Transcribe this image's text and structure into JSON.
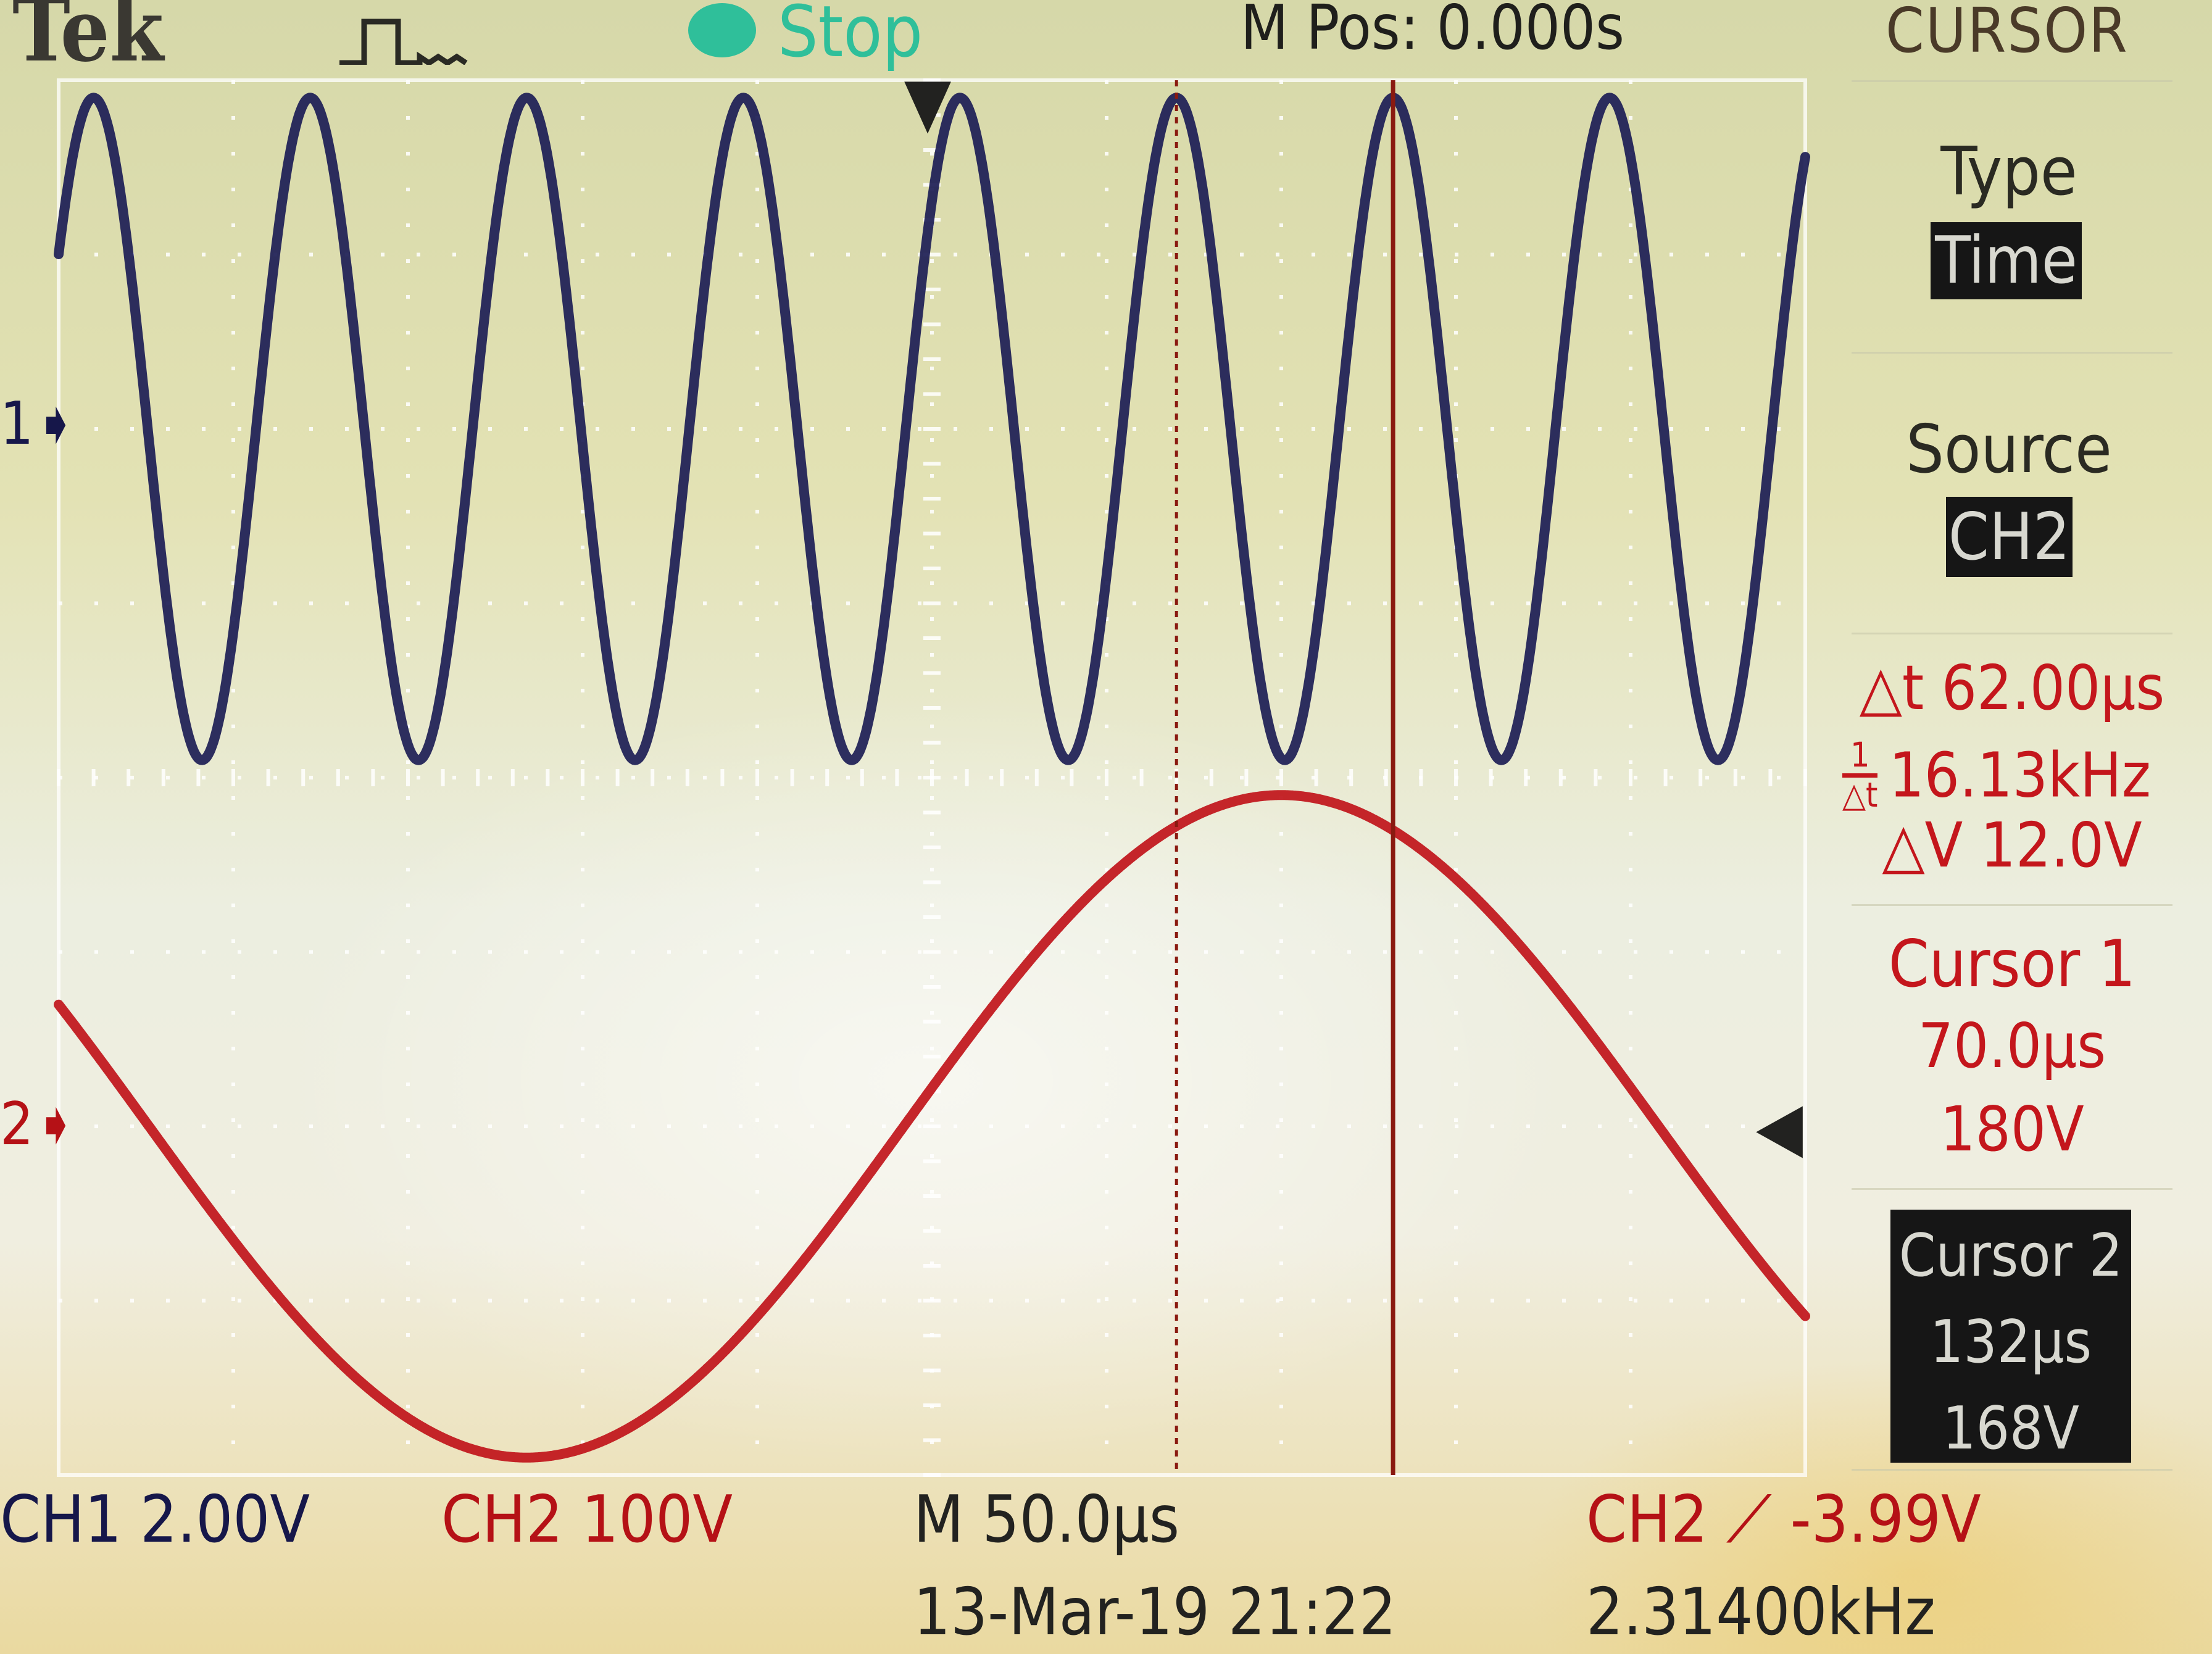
{
  "header": {
    "brand": "Tek",
    "acquire_icon": "pulse-waveform-icon",
    "run_state": "Stop",
    "run_state_color": "#2fbf9a",
    "horizontal_position": "M Pos: 0.000s",
    "menu_title": "CURSOR"
  },
  "side_menu": {
    "type_label": "Type",
    "type_value": "Time",
    "source_label": "Source",
    "source_value": "CH2",
    "delta_t": "△t 62.00μs",
    "inv_delta_t_symbol_num": "1",
    "inv_delta_t_symbol_den": "△t",
    "inv_delta_t": "16.13kHz",
    "delta_v": "△V 12.0V",
    "cursor1_label": "Cursor 1",
    "cursor1_time": "70.0μs",
    "cursor1_value": "180V",
    "cursor2_label": "Cursor 2",
    "cursor2_time": "132μs",
    "cursor2_value": "168V"
  },
  "footer": {
    "ch1_scale": "CH1  2.00V",
    "ch2_scale": "CH2  100V",
    "timebase": "M 50.0μs",
    "trigger": "CH2 ⟋ -3.99V",
    "date_time": "13-Mar-19 21:22",
    "trigger_frequency": "2.31400kHz"
  },
  "markers": {
    "ch1": "1",
    "ch2": "2"
  },
  "chart_data": {
    "type": "line",
    "title": "",
    "xlabel": "",
    "ylabel": "",
    "x_unit": "μs",
    "xlim": [
      -250,
      250
    ],
    "divisions": {
      "horizontal": 10,
      "vertical": 8
    },
    "grid": true,
    "series": [
      {
        "name": "CH1",
        "color": "#1c1d55",
        "volts_per_div": 2.0,
        "ground_level_div": 2.0,
        "waveform": "sine",
        "frequency_khz": 16.13,
        "amplitude_v": 3.8,
        "phase_peak_us": 70.0
      },
      {
        "name": "CH2",
        "color": "#c0141a",
        "volts_per_div": 100,
        "ground_level_div": -2.0,
        "waveform": "sine",
        "frequency_khz": 2.314,
        "amplitude_v": 190,
        "phase_peak_us": 100.0
      }
    ],
    "cursors": [
      {
        "name": "Cursor 1",
        "time_us": 70.0,
        "value_v": 180
      },
      {
        "name": "Cursor 2",
        "time_us": 132.0,
        "value_v": 168
      }
    ],
    "trigger_position_us": 0
  }
}
